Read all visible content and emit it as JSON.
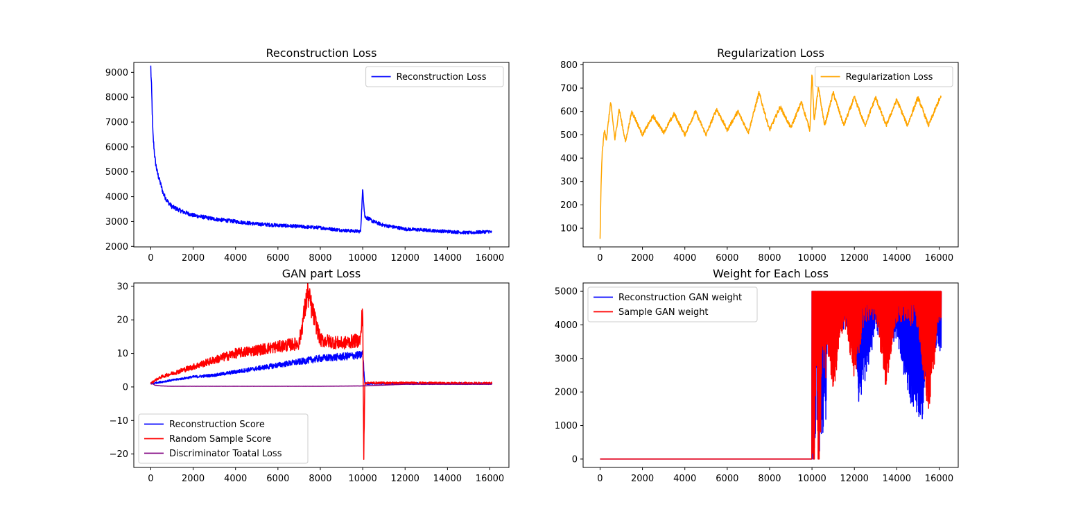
{
  "figure": {
    "background": "#ffffff"
  },
  "chart_data": [
    {
      "type": "line",
      "title": "Reconstruction Loss",
      "xlabel": "",
      "ylabel": "",
      "xlim": [
        -800,
        16900
      ],
      "ylim": [
        1980,
        9400
      ],
      "xticks": [
        0,
        2000,
        4000,
        6000,
        8000,
        10000,
        12000,
        14000,
        16000
      ],
      "yticks": [
        2000,
        3000,
        4000,
        5000,
        6000,
        7000,
        8000,
        9000
      ],
      "grid": false,
      "legend_position": "upper-right",
      "series": [
        {
          "name": "Reconstruction Loss",
          "color": "#0000ff",
          "noise": 0.05,
          "x": [
            0,
            50,
            100,
            200,
            300,
            400,
            500,
            600,
            800,
            1000,
            1500,
            2000,
            3000,
            4000,
            5000,
            6000,
            7000,
            8000,
            9000,
            9900,
            10000,
            10100,
            10500,
            11000,
            12000,
            13000,
            14000,
            15000,
            16000,
            16100
          ],
          "values": [
            9200,
            8000,
            6500,
            5500,
            5000,
            4700,
            4400,
            4100,
            3800,
            3600,
            3400,
            3250,
            3100,
            3000,
            2900,
            2850,
            2800,
            2750,
            2650,
            2600,
            4300,
            3200,
            3000,
            2850,
            2700,
            2650,
            2600,
            2550,
            2600,
            2550
          ]
        }
      ]
    },
    {
      "type": "line",
      "title": "Regularization Loss",
      "xlabel": "",
      "ylabel": "",
      "xlim": [
        -800,
        16900
      ],
      "ylim": [
        20,
        810
      ],
      "xticks": [
        0,
        2000,
        4000,
        6000,
        8000,
        10000,
        12000,
        14000,
        16000
      ],
      "yticks": [
        100,
        200,
        300,
        400,
        500,
        600,
        700,
        800
      ],
      "grid": false,
      "legend_position": "upper-right",
      "series": [
        {
          "name": "Regularization Loss",
          "color": "#ffa500",
          "noise": 0.03,
          "x": [
            0,
            50,
            100,
            200,
            300,
            500,
            700,
            900,
            1200,
            1500,
            2000,
            2500,
            3000,
            3500,
            4000,
            4500,
            5000,
            5500,
            6000,
            6500,
            7000,
            7500,
            8000,
            8500,
            9000,
            9500,
            9900,
            10000,
            10100,
            10300,
            10600,
            11000,
            11500,
            12000,
            12500,
            13000,
            13500,
            14000,
            14500,
            15000,
            15500,
            16000,
            16100
          ],
          "values": [
            55,
            300,
            420,
            520,
            480,
            640,
            480,
            610,
            470,
            600,
            500,
            580,
            510,
            590,
            500,
            600,
            500,
            610,
            520,
            600,
            510,
            680,
            520,
            620,
            530,
            640,
            520,
            770,
            560,
            700,
            540,
            680,
            540,
            660,
            540,
            660,
            540,
            650,
            540,
            660,
            540,
            650,
            660
          ]
        }
      ]
    },
    {
      "type": "line",
      "title": "GAN part Loss",
      "xlabel": "",
      "ylabel": "",
      "xlim": [
        -800,
        16900
      ],
      "ylim": [
        -24,
        31
      ],
      "xticks": [
        0,
        2000,
        4000,
        6000,
        8000,
        10000,
        12000,
        14000,
        16000
      ],
      "yticks": [
        -20,
        -10,
        0,
        10,
        20,
        30
      ],
      "grid": false,
      "legend_position": "lower-left",
      "series": [
        {
          "name": "Reconstruction Score",
          "color": "#0000ff",
          "noise": 0.25,
          "x": [
            0,
            200,
            1000,
            2000,
            3000,
            4000,
            5000,
            6000,
            7000,
            8000,
            9000,
            9900,
            10000,
            10100,
            12000,
            14000,
            16000,
            16100
          ],
          "values": [
            1,
            1.2,
            2,
            3,
            3.5,
            4.5,
            5.5,
            6.5,
            7.5,
            8.5,
            9,
            9.5,
            10,
            1,
            1,
            1,
            1,
            1
          ]
        },
        {
          "name": "Random Sample Score",
          "color": "#ff0000",
          "noise": 0.3,
          "x": [
            0,
            200,
            500,
            1000,
            2000,
            3000,
            4000,
            5000,
            6000,
            7000,
            7400,
            8000,
            9000,
            9900,
            10000,
            10050,
            10100,
            12000,
            14000,
            16000,
            16100
          ],
          "values": [
            1,
            2,
            3,
            4,
            6,
            8,
            10,
            11,
            12,
            13,
            28,
            14,
            13,
            14,
            24.5,
            -22,
            1.2,
            1.2,
            1.1,
            1.1,
            1.1
          ]
        },
        {
          "name": "Discriminator Toatal Loss",
          "color": "#800080",
          "noise": 0.02,
          "x": [
            0,
            100,
            200,
            500,
            1000,
            2000,
            4000,
            6000,
            8000,
            10000,
            12000,
            14000,
            16000,
            16100
          ],
          "values": [
            1.2,
            0.9,
            0.5,
            0.3,
            0.2,
            0.2,
            0.2,
            0.2,
            0.2,
            0.3,
            0.8,
            0.8,
            0.8,
            0.8
          ]
        }
      ]
    },
    {
      "type": "line",
      "title": "Weight for Each Loss",
      "xlabel": "",
      "ylabel": "",
      "xlim": [
        -800,
        16900
      ],
      "ylim": [
        -250,
        5250
      ],
      "xticks": [
        0,
        2000,
        4000,
        6000,
        8000,
        10000,
        12000,
        14000,
        16000
      ],
      "yticks": [
        0,
        1000,
        2000,
        3000,
        4000,
        5000
      ],
      "grid": false,
      "legend_position": "upper-left",
      "series": [
        {
          "name": "Reconstruction GAN weight",
          "color": "#0000ff",
          "noise": 0,
          "x": [
            0,
            9990,
            10000,
            10100,
            10200,
            10300,
            10500,
            11000,
            12000,
            12200,
            13000,
            14000,
            14700,
            15200,
            15500,
            16000,
            16100
          ],
          "values": [
            0,
            0,
            3500,
            1000,
            4200,
            2000,
            3000,
            4500,
            4800,
            2400,
            4600,
            4300,
            2450,
            2000,
            4500,
            4000,
            4200
          ]
        },
        {
          "name": "Sample GAN weight",
          "color": "#ff0000",
          "noise": 0,
          "x": [
            0,
            9990,
            10000,
            10100,
            10200,
            10300,
            10500,
            11000,
            11500,
            12000,
            12500,
            13000,
            13500,
            14000,
            15000,
            15500,
            16000,
            16100
          ],
          "values": [
            0,
            0,
            3500,
            300,
            5000,
            900,
            5000,
            2800,
            5000,
            3300,
            5000,
            5000,
            2950,
            5000,
            4800,
            2100,
            5000,
            5000
          ]
        }
      ]
    }
  ]
}
